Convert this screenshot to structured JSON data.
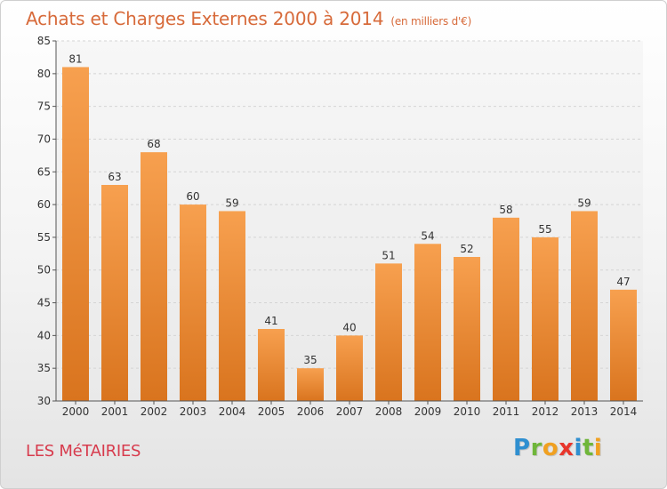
{
  "header": {
    "title": "Achats et Charges Externes 2000 à 2014",
    "subtitle": "(en milliers d'€)"
  },
  "footer": {
    "commune": "LES MéTAIRIES",
    "logo": {
      "letters": [
        "P",
        "r",
        "o",
        "x",
        "i",
        "t",
        "i"
      ],
      "colors": [
        "#2f8fd0",
        "#6fb63a",
        "#f0a020",
        "#e8352b",
        "#2f8fd0",
        "#6fb63a",
        "#f0a020"
      ]
    }
  },
  "chart_data": {
    "type": "bar",
    "title": "Achats et Charges Externes 2000 à 2014",
    "subtitle": "(en milliers d'€)",
    "categories": [
      "2000",
      "2001",
      "2002",
      "2003",
      "2004",
      "2005",
      "2006",
      "2007",
      "2008",
      "2009",
      "2010",
      "2011",
      "2012",
      "2013",
      "2014"
    ],
    "values": [
      81,
      63,
      68,
      60,
      59,
      41,
      35,
      40,
      51,
      54,
      52,
      58,
      55,
      59,
      47
    ],
    "data_labels": [
      "81",
      "63",
      "68",
      "60",
      "59",
      "41",
      "35",
      "40",
      "51",
      "54",
      "52",
      "58",
      "55",
      "59",
      "47"
    ],
    "ylim": [
      30,
      85
    ],
    "yticks": [
      30,
      35,
      40,
      45,
      50,
      55,
      60,
      65,
      70,
      75,
      80,
      85
    ],
    "grid": true,
    "legend": "none",
    "colors": {
      "bar_top": "#f7a04f",
      "bar_bottom": "#d9741e",
      "grid": "#d4d4d4",
      "axis": "#555555"
    }
  }
}
